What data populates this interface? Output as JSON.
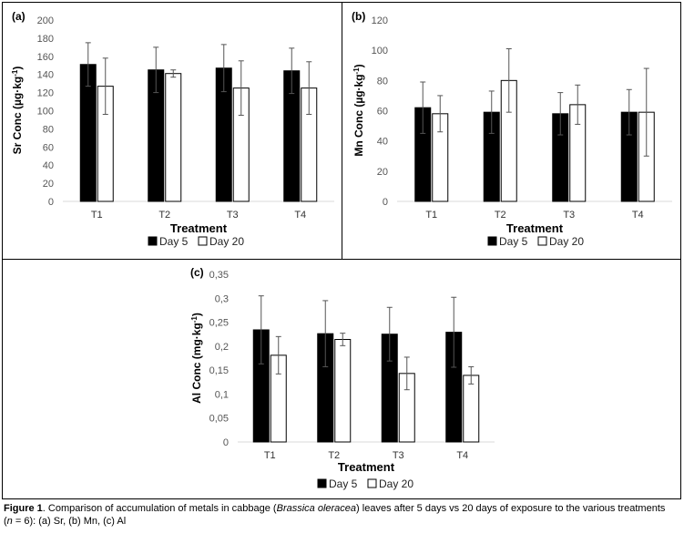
{
  "chart_data": [
    {
      "id": "a",
      "panel_label": "(a)",
      "type": "bar",
      "ylabel_main": "Sr Conc (µg·kg",
      "ylabel_sup": "-1",
      "ylabel_end": ")",
      "xlabel": "Treatment",
      "categories": [
        "T1",
        "T2",
        "T3",
        "T4"
      ],
      "yticks": [
        "0",
        "20",
        "40",
        "60",
        "80",
        "100",
        "120",
        "140",
        "160",
        "180",
        "200"
      ],
      "ylim": [
        0,
        200
      ],
      "series": [
        {
          "name": "Day 5",
          "fill": "#000000",
          "values": [
            151,
            145,
            147,
            144
          ],
          "errors": [
            24,
            25,
            26,
            25
          ]
        },
        {
          "name": "Day 20",
          "fill": "#ffffff",
          "values": [
            127,
            141,
            125,
            125
          ],
          "errors": [
            31,
            4,
            30,
            29
          ]
        }
      ],
      "legend": [
        "Day 5",
        "Day 20"
      ]
    },
    {
      "id": "b",
      "panel_label": "(b)",
      "type": "bar",
      "ylabel_main": "Mn Conc (µg·kg",
      "ylabel_sup": "-1",
      "ylabel_end": ")",
      "xlabel": "Treatment",
      "categories": [
        "T1",
        "T2",
        "T3",
        "T4"
      ],
      "yticks": [
        "0",
        "20",
        "40",
        "60",
        "80",
        "100",
        "120"
      ],
      "ylim": [
        0,
        120
      ],
      "series": [
        {
          "name": "Day 5",
          "fill": "#000000",
          "values": [
            62,
            59,
            58,
            59
          ],
          "errors": [
            17,
            14,
            14,
            15
          ]
        },
        {
          "name": "Day 20",
          "fill": "#ffffff",
          "values": [
            58,
            80,
            64,
            59
          ],
          "errors": [
            12,
            21,
            13,
            29
          ]
        }
      ],
      "legend": [
        "Day 5",
        "Day 20"
      ]
    },
    {
      "id": "c",
      "panel_label": "(c)",
      "type": "bar",
      "ylabel_main": "Al Conc (mg·kg",
      "ylabel_sup": "-1",
      "ylabel_end": ")",
      "xlabel": "Treatment",
      "categories": [
        "T1",
        "T2",
        "T3",
        "T4"
      ],
      "yticks": [
        "0",
        "0,05",
        "0,1",
        "0,15",
        "0,2",
        "0,25",
        "0,3",
        "0,35"
      ],
      "ylim": [
        0,
        0.35
      ],
      "series": [
        {
          "name": "Day 5",
          "fill": "#000000",
          "values": [
            0.234,
            0.226,
            0.225,
            0.229
          ],
          "errors": [
            0.071,
            0.069,
            0.056,
            0.073
          ]
        },
        {
          "name": "Day 20",
          "fill": "#ffffff",
          "values": [
            0.181,
            0.214,
            0.143,
            0.139
          ],
          "errors": [
            0.039,
            0.013,
            0.034,
            0.018
          ]
        }
      ],
      "legend": [
        "Day 5",
        "Day 20"
      ]
    }
  ],
  "caption": {
    "label": "Figure 1",
    "text_before_italic": ". Comparison of accumulation of metals in cabbage (",
    "italic": "Brassica oleracea",
    "text_after_italic": ") leaves after 5 days vs 20 days of exposure to the various treatments",
    "line2_open": "(",
    "n_italic": "n",
    "line2_rest": " = 6): (a) Sr, (b) Mn, (c) Al"
  }
}
